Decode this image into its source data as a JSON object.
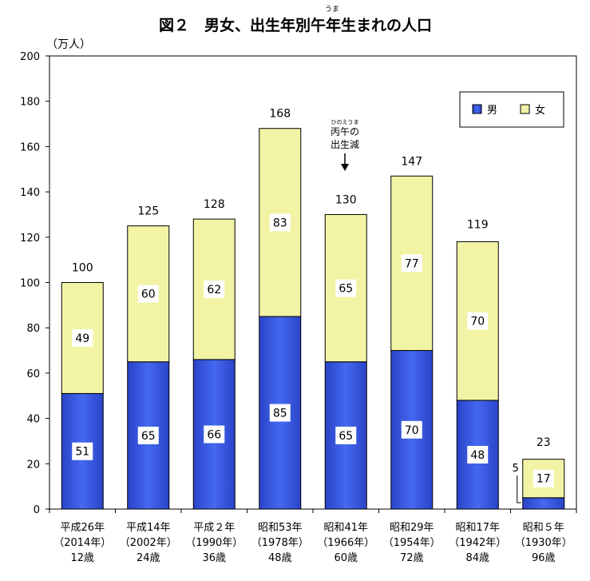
{
  "chart_data": {
    "type": "bar",
    "stacked": true,
    "title": "図２　男女、出生年別午年生まれの人口",
    "title_ruby": "うま",
    "ylabel": "（万人）",
    "ylim": [
      0,
      200
    ],
    "yticks": [
      0,
      20,
      40,
      60,
      80,
      100,
      120,
      140,
      160,
      180,
      200
    ],
    "categories": [
      [
        "平成26年",
        "（2014年）",
        "12歳"
      ],
      [
        "平成14年",
        "（2002年）",
        "24歳"
      ],
      [
        "平成２年",
        "（1990年）",
        "36歳"
      ],
      [
        "昭和53年",
        "（1978年）",
        "48歳"
      ],
      [
        "昭和41年",
        "（1966年）",
        "60歳"
      ],
      [
        "昭和29年",
        "（1954年）",
        "72歳"
      ],
      [
        "昭和17年",
        "（1942年）",
        "84歳"
      ],
      [
        "昭和５年",
        "（1930年）",
        "96歳"
      ]
    ],
    "series": [
      {
        "name": "男",
        "color": "#3a5be0",
        "values": [
          51,
          65,
          66,
          85,
          65,
          70,
          48,
          5
        ]
      },
      {
        "name": "女",
        "color": "#f3f3a6",
        "values": [
          49,
          60,
          62,
          83,
          65,
          77,
          70,
          17
        ]
      }
    ],
    "totals": [
      100,
      125,
      128,
      168,
      130,
      147,
      119,
      23
    ],
    "legend_position": "top-right",
    "annotation": {
      "ruby": "ひのえうま",
      "lines": [
        "丙午の",
        "出生減"
      ]
    }
  }
}
